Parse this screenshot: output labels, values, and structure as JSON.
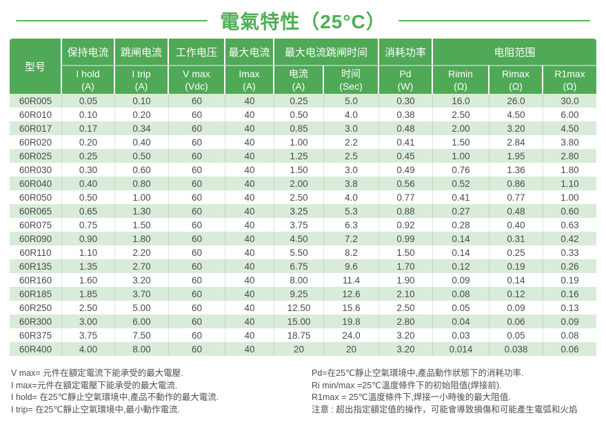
{
  "title": "電氣特性（25°C）",
  "colors": {
    "header_green": "#4fa956",
    "stripe_green": "#d9ecd9",
    "title_green": "#4fae55",
    "body_text": "#4a4a4a"
  },
  "table": {
    "model_header": "型号",
    "top": {
      "hold": "保持电流",
      "trip": "跳闸电流",
      "voltage": "工作电压",
      "imax": "最大电流",
      "trip_time": "最大电流跳闸时间",
      "power": "消耗功率",
      "resistance": "电阻范围"
    },
    "sub": [
      {
        "l1": "I hold",
        "l2": "(A)"
      },
      {
        "l1": "I trip",
        "l2": "(A)"
      },
      {
        "l1": "V max",
        "l2": "(Vdc)"
      },
      {
        "l1": "Imax",
        "l2": "(A)"
      },
      {
        "l1": "电流",
        "l2": "(A)"
      },
      {
        "l1": "时间",
        "l2": "(Sec)"
      },
      {
        "l1": "Pd",
        "l2": "(W)"
      },
      {
        "l1": "Rimin",
        "l2": "(Ω)"
      },
      {
        "l1": "Rimax",
        "l2": "(Ω)"
      },
      {
        "l1": "R1max",
        "l2": "(Ω)"
      }
    ],
    "rows": [
      [
        "60R005",
        "0.05",
        "0.10",
        "60",
        "40",
        "0.25",
        "5.0",
        "0.30",
        "16.0",
        "26.0",
        "30.0"
      ],
      [
        "60R010",
        "0.10",
        "0.20",
        "60",
        "40",
        "0.50",
        "4.0",
        "0.38",
        "2.50",
        "4.50",
        "6.00"
      ],
      [
        "60R017",
        "0.17",
        "0.34",
        "60",
        "40",
        "0.85",
        "3.0",
        "0.48",
        "2.00",
        "3.20",
        "4.50"
      ],
      [
        "60R020",
        "0.20",
        "0.40",
        "60",
        "40",
        "1.00",
        "2.2",
        "0.41",
        "1.50",
        "2.84",
        "3.80"
      ],
      [
        "60R025",
        "0.25",
        "0.50",
        "60",
        "40",
        "1.25",
        "2.5",
        "0.45",
        "1.00",
        "1.95",
        "2.80"
      ],
      [
        "60R030",
        "0.30",
        "0.60",
        "60",
        "40",
        "1.50",
        "3.0",
        "0.49",
        "0.76",
        "1.36",
        "1.80"
      ],
      [
        "60R040",
        "0.40",
        "0.80",
        "60",
        "40",
        "2.00",
        "3.8",
        "0.56",
        "0.52",
        "0.86",
        "1.10"
      ],
      [
        "60R050",
        "0.50",
        "1.00",
        "60",
        "40",
        "2.50",
        "4.0",
        "0.77",
        "0.41",
        "0.77",
        "1.00"
      ],
      [
        "60R065",
        "0.65",
        "1.30",
        "60",
        "40",
        "3.25",
        "5.3",
        "0.88",
        "0.27",
        "0.48",
        "0.60"
      ],
      [
        "60R075",
        "0.75",
        "1.50",
        "60",
        "40",
        "3.75",
        "6.3",
        "0.92",
        "0.28",
        "0.40",
        "0.63"
      ],
      [
        "60R090",
        "0.90",
        "1.80",
        "60",
        "40",
        "4.50",
        "7.2",
        "0.99",
        "0.14",
        "0.31",
        "0.42"
      ],
      [
        "60R110",
        "1.10",
        "2.20",
        "60",
        "40",
        "5.50",
        "8.2",
        "1.50",
        "0.14",
        "0.25",
        "0.33"
      ],
      [
        "60R135",
        "1.35",
        "2.70",
        "60",
        "40",
        "6.75",
        "9.6",
        "1.70",
        "0.12",
        "0.19",
        "0.26"
      ],
      [
        "60R160",
        "1.60",
        "3.20",
        "60",
        "40",
        "8.00",
        "11.4",
        "1.90",
        "0.09",
        "0.14",
        "0.19"
      ],
      [
        "60R185",
        "1.85",
        "3.70",
        "60",
        "40",
        "9.25",
        "12.6",
        "2.10",
        "0.08",
        "0.12",
        "0.16"
      ],
      [
        "60R250",
        "2.50",
        "5.00",
        "60",
        "40",
        "12.50",
        "15.6",
        "2.50",
        "0.05",
        "0.09",
        "0.13"
      ],
      [
        "60R300",
        "3.00",
        "6.00",
        "60",
        "40",
        "15.00",
        "19.8",
        "2.80",
        "0.04",
        "0.06",
        "0.09"
      ],
      [
        "60R375",
        "3.75",
        "7.50",
        "60",
        "40",
        "18.75",
        "24.0",
        "3.20",
        "0.03",
        "0.05",
        "0.08"
      ],
      [
        "60R400",
        "4.00",
        "8.00",
        "60",
        "40",
        "20",
        "20",
        "3.20",
        "0.014",
        "0.038",
        "0.06"
      ]
    ]
  },
  "notes": {
    "left": [
      "V max= 元件在額定電流下能承受的最大電壓.",
      "I max=元件在額定電壓下能承受的最大電流.",
      "I hold= 在25℃靜止空氣環境中,產品不動作的最大電流.",
      "I trip= 在25℃靜止空氣環境中,最小動作電流."
    ],
    "right": [
      "Pd=在25℃靜止空氣環境中,產品動作狀態下的消耗功率.",
      "Ri min/max  =25℃溫度條件下的初始阻值(焊接前).",
      "R1max  = 25℃溫度條件下,焊接一小時後的最大阻值.",
      "注意 : 超出指定額定值的操作，可能會導致損傷和可能產生電弧和火焰"
    ]
  }
}
